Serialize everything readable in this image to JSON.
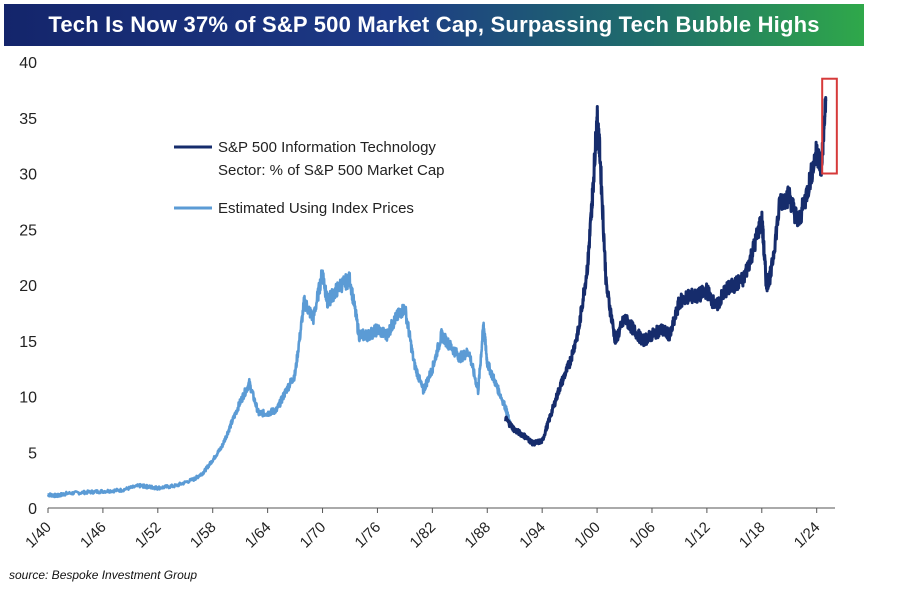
{
  "chart_data": {
    "type": "line",
    "title": "Tech Is Now 37% of S&P 500 Market Cap, Surpassing Tech Bubble Highs",
    "xlabel": "",
    "ylabel": "",
    "ylim": [
      0,
      40
    ],
    "yticks": [
      "0",
      "5",
      "10",
      "15",
      "20",
      "25",
      "30",
      "35",
      "40"
    ],
    "xtick_labels": [
      "1/40",
      "1/46",
      "1/52",
      "1/58",
      "1/64",
      "1/70",
      "1/76",
      "1/82",
      "1/88",
      "1/94",
      "1/00",
      "1/06",
      "1/12",
      "1/18",
      "1/24"
    ],
    "xtick_years": [
      1940,
      1946,
      1952,
      1958,
      1964,
      1970,
      1976,
      1982,
      1988,
      1994,
      2000,
      2006,
      2012,
      2018,
      2024
    ],
    "xlim": [
      1940,
      2026
    ],
    "grid": false,
    "legend_position": "upper-left",
    "series": [
      {
        "name": "Estimated Using Index Prices",
        "color": "#5b9bd5",
        "x": [
          1940,
          1941,
          1942,
          1944,
          1946,
          1948,
          1950,
          1951,
          1952,
          1954,
          1956,
          1957,
          1958,
          1959,
          1960,
          1961,
          1962,
          1963,
          1964,
          1965,
          1966,
          1967,
          1968,
          1969,
          1970,
          1970.5,
          1971,
          1972,
          1973,
          1974,
          1975,
          1976,
          1977,
          1978,
          1979,
          1980,
          1981,
          1982,
          1983,
          1984,
          1985,
          1986,
          1987,
          1987.6,
          1988,
          1989,
          1990,
          1990.5
        ],
        "y": [
          1.2,
          1.1,
          1.3,
          1.4,
          1.5,
          1.6,
          2.0,
          1.9,
          1.8,
          2.0,
          2.6,
          3.2,
          4.3,
          5.5,
          7.5,
          9.5,
          11.2,
          8.5,
          8.5,
          8.8,
          10.5,
          12.0,
          18.5,
          17.0,
          21.2,
          18.5,
          19.0,
          20.0,
          20.5,
          15.5,
          15.5,
          16.0,
          15.5,
          17.0,
          18.0,
          13.0,
          10.5,
          12.5,
          15.5,
          14.5,
          13.5,
          14.0,
          10.5,
          16.5,
          13.0,
          11.0,
          9.0,
          7.5
        ]
      },
      {
        "name": "S&P 500 Information Technology Sector: % of S&P 500 Market Cap",
        "color": "#162c6c",
        "x": [
          1990,
          1991,
          1992,
          1993,
          1994,
          1995,
          1996,
          1997,
          1998,
          1999,
          1999.5,
          2000,
          2000.3,
          2001,
          2002,
          2003,
          2004,
          2005,
          2006,
          2007,
          2008,
          2009,
          2010,
          2011,
          2012,
          2013,
          2014,
          2015,
          2016,
          2017,
          2018,
          2018.5,
          2019,
          2020,
          2021,
          2022,
          2023,
          2024,
          2024.5,
          2025
        ],
        "y": [
          8.0,
          7.0,
          6.5,
          5.8,
          6.0,
          8.5,
          11.0,
          13.0,
          16.0,
          22.0,
          28.0,
          35.0,
          32.0,
          20.0,
          15.0,
          17.0,
          16.0,
          15.0,
          15.5,
          16.0,
          15.5,
          18.5,
          19.0,
          19.0,
          19.5,
          18.0,
          19.5,
          20.0,
          20.5,
          23.0,
          26.0,
          20.0,
          21.0,
          27.5,
          28.0,
          25.5,
          28.5,
          32.0,
          30.5,
          36.5
        ]
      }
    ]
  },
  "legend": {
    "entries": [
      {
        "label_line1": "S&P 500 Information Technology",
        "label_line2": "Sector: % of S&P 500 Market Cap",
        "color": "#162c6c"
      },
      {
        "label_line1": "Estimated Using Index Prices",
        "label_line2": "",
        "color": "#5b9bd5"
      }
    ]
  },
  "highlight_box_color": "#d63a3a",
  "source": "source: Bespoke Investment Group"
}
